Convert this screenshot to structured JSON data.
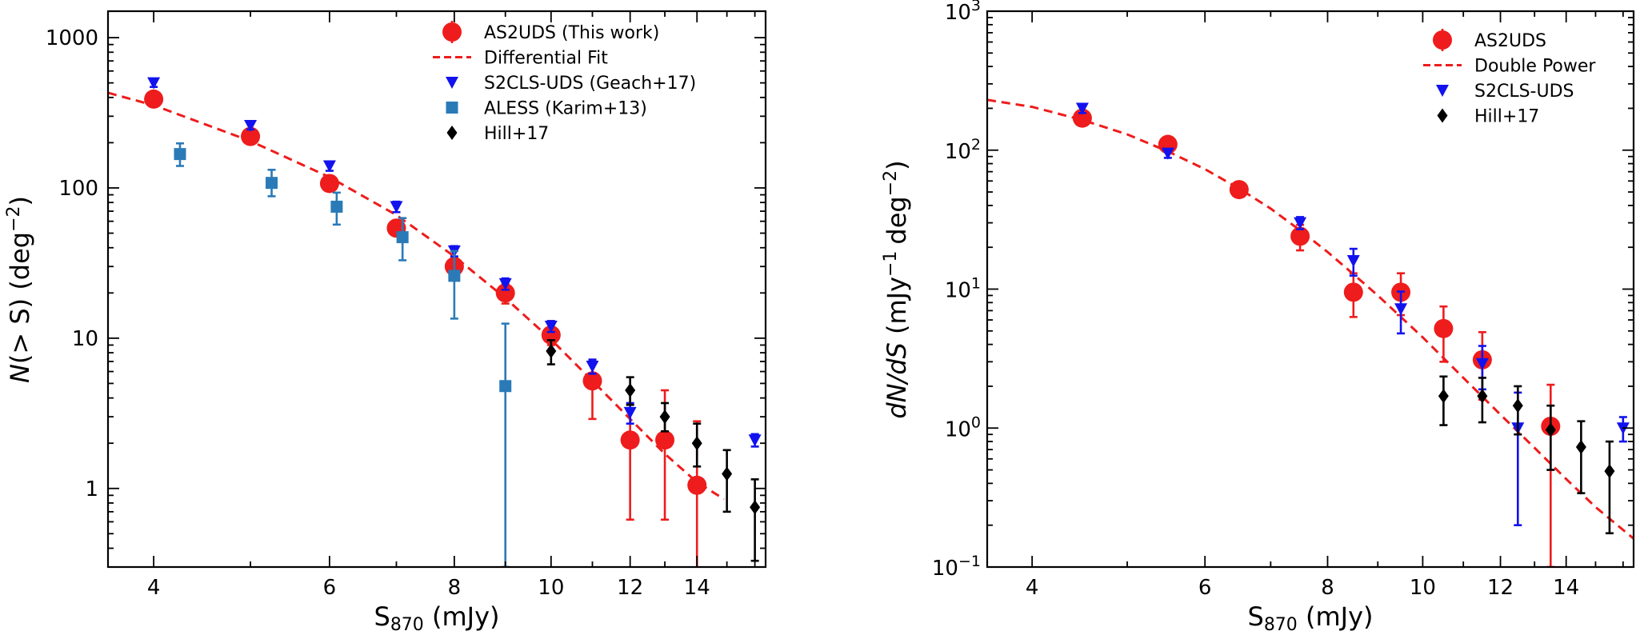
{
  "colors": {
    "as2uds": "#ee1c1c",
    "fit": "#ee1c1c",
    "s2cls": "#1212ee",
    "aless": "#2a7ab8",
    "hill": "#000000"
  },
  "chart_data": [
    {
      "type": "scatter",
      "id": "cumulative",
      "xlabel_main": "S",
      "xlabel_sub": "870",
      "xlabel_unit": " (mJy)",
      "ylabel_n": "N",
      "ylabel_cond": "(> S) (deg",
      "ylabel_exp": "−2",
      "ylabel_close": ")",
      "xscale": "log",
      "yscale": "log",
      "xlim": [
        3.6,
        16.4
      ],
      "ylim": [
        0.3,
        1500
      ],
      "xticks": [
        4,
        6,
        8,
        10,
        12,
        14
      ],
      "xtick_labels": [
        "4",
        "6",
        "8",
        "10",
        "12",
        "14"
      ],
      "yticks": [
        1,
        10,
        100,
        1000
      ],
      "ytick_labels": [
        "1",
        "10",
        "100",
        "1000"
      ],
      "legend_position": "top-right",
      "series": [
        {
          "name": "AS2UDS (This work)",
          "marker": "circle",
          "color": "#ee1c1c",
          "x": [
            4,
            5,
            6,
            7,
            8,
            9,
            10,
            11,
            12,
            13,
            14
          ],
          "y": [
            390,
            220,
            107,
            54,
            30,
            20,
            10.5,
            5.2,
            2.1,
            2.1,
            1.05
          ],
          "ylo": [
            360,
            200,
            97,
            49,
            27,
            17,
            9,
            2.9,
            0.62,
            0.62,
            0.25
          ],
          "yhi": [
            420,
            240,
            117,
            59,
            33,
            23,
            13,
            7.2,
            4.5,
            4.5,
            2.8
          ]
        },
        {
          "name": "Differential Fit",
          "marker": "line",
          "color": "#ee1c1c",
          "x": [
            3.6,
            4,
            5,
            6,
            7,
            8,
            9,
            10,
            11,
            12,
            13,
            14,
            14.9
          ],
          "y": [
            430,
            355,
            205,
            118,
            66,
            35,
            18.5,
            9.8,
            5.2,
            2.9,
            1.7,
            1.1,
            0.85
          ]
        },
        {
          "name": "S2CLS-UDS (Geach+17)",
          "marker": "triangle-down",
          "color": "#1212ee",
          "x": [
            4,
            5,
            6,
            7,
            8,
            9,
            10,
            11,
            12,
            16
          ],
          "y": [
            500,
            260,
            140,
            75,
            38,
            23,
            12,
            6.5,
            3.2,
            2.1
          ],
          "ylo": [
            470,
            245,
            130,
            69,
            35,
            21,
            11,
            5.8,
            2.7,
            1.9
          ],
          "yhi": [
            530,
            275,
            150,
            81,
            41,
            25,
            13,
            7.2,
            3.7,
            2.3
          ]
        },
        {
          "name": "ALESS (Karim+13)",
          "marker": "square",
          "color": "#2a7ab8",
          "x": [
            4.25,
            5.25,
            6.1,
            7.1,
            8,
            9
          ],
          "y": [
            168,
            108,
            75,
            47,
            26,
            4.8
          ],
          "ylo": [
            140,
            88,
            57,
            33,
            13.5,
            0.3
          ],
          "yhi": [
            198,
            132,
            93,
            63,
            38,
            12.5
          ]
        },
        {
          "name": "Hill+17",
          "marker": "diamond",
          "color": "#000000",
          "x": [
            10,
            12,
            13,
            14,
            15,
            16
          ],
          "y": [
            8.2,
            4.5,
            3.0,
            2.0,
            1.25,
            0.75
          ],
          "ylo": [
            6.7,
            3.6,
            2.4,
            1.4,
            0.7,
            0.33
          ],
          "yhi": [
            9.7,
            5.5,
            3.7,
            2.7,
            1.8,
            1.15
          ]
        }
      ]
    },
    {
      "type": "scatter",
      "id": "differential",
      "xlabel_main": "S",
      "xlabel_sub": "870",
      "xlabel_unit": " (mJy)",
      "ylabel_n": "dN/dS",
      "ylabel_cond": "(mJy",
      "ylabel_exp": "−1",
      "ylabel_cond2": "deg",
      "ylabel_exp2": "−2",
      "ylabel_close": ")",
      "xscale": "log",
      "yscale": "log",
      "xlim": [
        3.6,
        16.4
      ],
      "ylim": [
        0.1,
        1000
      ],
      "xticks": [
        4,
        6,
        8,
        10,
        12,
        14
      ],
      "xtick_labels": [
        "4",
        "6",
        "8",
        "10",
        "12",
        "14"
      ],
      "yticks": [
        0.1,
        1,
        10,
        100,
        1000
      ],
      "ytick_base": "10",
      "ytick_exps": [
        "−1",
        "0",
        "1",
        "2",
        "3"
      ],
      "legend_position": "top-right",
      "series": [
        {
          "name": "AS2UDS",
          "marker": "circle",
          "color": "#ee1c1c",
          "x": [
            4.5,
            5.5,
            6.5,
            7.5,
            8.5,
            9.5,
            10.5,
            11.5,
            13.5
          ],
          "y": [
            170,
            110,
            52,
            24,
            9.5,
            9.5,
            5.2,
            3.1,
            1.03
          ],
          "ylo": [
            150,
            100,
            47,
            19,
            6.3,
            6.5,
            3.0,
            1.6,
            0.1
          ],
          "yhi": [
            190,
            120,
            57,
            29,
            13,
            13,
            7.5,
            4.9,
            2.05
          ]
        },
        {
          "name": "Double Power",
          "marker": "line",
          "color": "#ee1c1c",
          "x": [
            3.6,
            4,
            4.5,
            5,
            5.5,
            6,
            6.5,
            7,
            7.5,
            8,
            8.5,
            9,
            10,
            11,
            12,
            13,
            14,
            15,
            16.4
          ],
          "y": [
            230,
            205,
            165,
            130,
            98,
            73,
            53,
            38,
            26.5,
            18.5,
            12.8,
            9,
            4.5,
            2.3,
            1.25,
            0.72,
            0.43,
            0.27,
            0.16
          ]
        },
        {
          "name": "S2CLS-UDS",
          "marker": "triangle-down",
          "color": "#1212ee",
          "x": [
            4.5,
            5.5,
            7.5,
            8.5,
            9.5,
            11.5,
            12.5,
            16
          ],
          "y": [
            200,
            95,
            30,
            16,
            7.2,
            2.9,
            1.0,
            1.0
          ],
          "ylo": [
            185,
            88,
            27,
            12.5,
            4.8,
            1.9,
            0.2,
            0.8
          ],
          "yhi": [
            215,
            102,
            33,
            19.5,
            9.6,
            3.9,
            1.8,
            1.2
          ]
        },
        {
          "name": "Hill+17",
          "marker": "diamond",
          "color": "#000000",
          "x": [
            10.5,
            11.5,
            12.5,
            13.5,
            14.5,
            15.5
          ],
          "y": [
            1.7,
            1.7,
            1.45,
            0.97,
            0.73,
            0.49
          ],
          "ylo": [
            1.05,
            1.1,
            0.9,
            0.5,
            0.34,
            0.175
          ],
          "yhi": [
            2.35,
            2.3,
            2.0,
            1.45,
            1.12,
            0.8
          ]
        }
      ]
    }
  ]
}
